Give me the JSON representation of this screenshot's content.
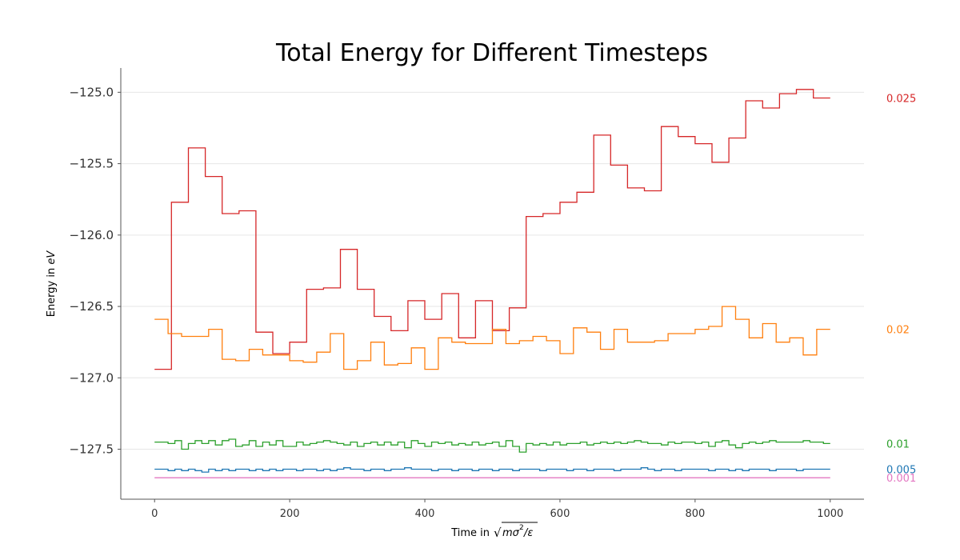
{
  "chart_data": {
    "type": "line",
    "title": "Total Energy for Different Timesteps",
    "xlabel_prefix": "Time in",
    "ylabel_prefix": "Energy in",
    "ylabel_unit": "eV",
    "xlim": [
      -50,
      1050
    ],
    "ylim": [
      -127.85,
      -124.83
    ],
    "xticks": [
      0,
      200,
      400,
      600,
      800,
      1000
    ],
    "xtick_labels": [
      "0",
      "200",
      "400",
      "600",
      "800",
      "1000"
    ],
    "yticks": [
      -125.0,
      -125.5,
      -126.0,
      -126.5,
      -127.0,
      -127.5
    ],
    "ytick_labels": [
      "−125.0",
      "−125.5",
      "−126.0",
      "−126.5",
      "−127.0",
      "−127.5"
    ],
    "grid": "horizontal",
    "legend": "series labels at right edge",
    "series": [
      {
        "name": "0.025",
        "color": "#d62728",
        "step": true,
        "x": [
          0,
          25,
          50,
          75,
          100,
          125,
          150,
          175,
          200,
          225,
          250,
          275,
          300,
          325,
          350,
          375,
          400,
          425,
          450,
          475,
          500,
          525,
          550,
          575,
          600,
          625,
          650,
          675,
          700,
          725,
          750,
          775,
          800,
          825,
          850,
          875,
          900,
          925,
          950,
          975,
          1000
        ],
        "values": [
          -126.94,
          -125.77,
          -125.39,
          -125.59,
          -125.85,
          -125.83,
          -126.68,
          -126.83,
          -126.75,
          -126.38,
          -126.37,
          -126.1,
          -126.38,
          -126.57,
          -126.67,
          -126.46,
          -126.59,
          -126.41,
          -126.72,
          -126.46,
          -126.67,
          -126.51,
          -125.87,
          -125.85,
          -125.77,
          -125.7,
          -125.3,
          -125.51,
          -125.67,
          -125.69,
          -125.24,
          -125.31,
          -125.36,
          -125.49,
          -125.32,
          -125.06,
          -125.11,
          -125.01,
          -124.98,
          -125.04,
          -125.04
        ]
      },
      {
        "name": "0.02",
        "color": "#ff7f0e",
        "step": true,
        "x": [
          0,
          20,
          40,
          60,
          80,
          100,
          120,
          140,
          160,
          180,
          200,
          220,
          240,
          260,
          280,
          300,
          320,
          340,
          360,
          380,
          400,
          420,
          440,
          460,
          480,
          500,
          520,
          540,
          560,
          580,
          600,
          620,
          640,
          660,
          680,
          700,
          720,
          740,
          760,
          780,
          800,
          820,
          840,
          860,
          880,
          900,
          920,
          940,
          960,
          980,
          1000
        ],
        "values": [
          -126.59,
          -126.69,
          -126.71,
          -126.71,
          -126.66,
          -126.87,
          -126.88,
          -126.8,
          -126.84,
          -126.84,
          -126.88,
          -126.89,
          -126.82,
          -126.69,
          -126.94,
          -126.88,
          -126.75,
          -126.91,
          -126.9,
          -126.79,
          -126.94,
          -126.72,
          -126.75,
          -126.76,
          -126.76,
          -126.66,
          -126.76,
          -126.74,
          -126.71,
          -126.74,
          -126.83,
          -126.65,
          -126.68,
          -126.8,
          -126.66,
          -126.75,
          -126.75,
          -126.74,
          -126.69,
          -126.69,
          -126.66,
          -126.64,
          -126.5,
          -126.59,
          -126.72,
          -126.62,
          -126.75,
          -126.72,
          -126.84,
          -126.66,
          -126.66
        ]
      },
      {
        "name": "0.01",
        "color": "#2ca02c",
        "step": true,
        "x": [
          0,
          10,
          20,
          30,
          40,
          50,
          60,
          70,
          80,
          90,
          100,
          110,
          120,
          130,
          140,
          150,
          160,
          170,
          180,
          190,
          200,
          210,
          220,
          230,
          240,
          250,
          260,
          270,
          280,
          290,
          300,
          310,
          320,
          330,
          340,
          350,
          360,
          370,
          380,
          390,
          400,
          410,
          420,
          430,
          440,
          450,
          460,
          470,
          480,
          490,
          500,
          510,
          520,
          530,
          540,
          550,
          560,
          570,
          580,
          590,
          600,
          610,
          620,
          630,
          640,
          650,
          660,
          670,
          680,
          690,
          700,
          710,
          720,
          730,
          740,
          750,
          760,
          770,
          780,
          790,
          800,
          810,
          820,
          830,
          840,
          850,
          860,
          870,
          880,
          890,
          900,
          910,
          920,
          930,
          940,
          950,
          960,
          970,
          980,
          990,
          1000
        ],
        "values": [
          -127.45,
          -127.45,
          -127.46,
          -127.44,
          -127.5,
          -127.46,
          -127.44,
          -127.46,
          -127.44,
          -127.47,
          -127.44,
          -127.43,
          -127.48,
          -127.47,
          -127.44,
          -127.48,
          -127.45,
          -127.47,
          -127.44,
          -127.48,
          -127.48,
          -127.45,
          -127.47,
          -127.46,
          -127.45,
          -127.44,
          -127.45,
          -127.46,
          -127.47,
          -127.45,
          -127.48,
          -127.46,
          -127.45,
          -127.47,
          -127.45,
          -127.47,
          -127.45,
          -127.49,
          -127.44,
          -127.46,
          -127.48,
          -127.45,
          -127.46,
          -127.45,
          -127.47,
          -127.46,
          -127.47,
          -127.45,
          -127.47,
          -127.46,
          -127.45,
          -127.48,
          -127.44,
          -127.48,
          -127.52,
          -127.46,
          -127.47,
          -127.46,
          -127.47,
          -127.45,
          -127.47,
          -127.46,
          -127.46,
          -127.45,
          -127.47,
          -127.46,
          -127.45,
          -127.46,
          -127.45,
          -127.46,
          -127.45,
          -127.44,
          -127.45,
          -127.46,
          -127.46,
          -127.47,
          -127.45,
          -127.46,
          -127.45,
          -127.45,
          -127.46,
          -127.45,
          -127.48,
          -127.45,
          -127.44,
          -127.47,
          -127.49,
          -127.46,
          -127.45,
          -127.46,
          -127.45,
          -127.44,
          -127.45,
          -127.45,
          -127.45,
          -127.45,
          -127.44,
          -127.45,
          -127.45,
          -127.46,
          -127.46
        ]
      },
      {
        "name": "0.005",
        "color": "#1f77b4",
        "step": true,
        "x": [
          0,
          10,
          20,
          30,
          40,
          50,
          60,
          70,
          80,
          90,
          100,
          110,
          120,
          130,
          140,
          150,
          160,
          170,
          180,
          190,
          200,
          210,
          220,
          230,
          240,
          250,
          260,
          270,
          280,
          290,
          300,
          310,
          320,
          330,
          340,
          350,
          360,
          370,
          380,
          390,
          400,
          410,
          420,
          430,
          440,
          450,
          460,
          470,
          480,
          490,
          500,
          510,
          520,
          530,
          540,
          550,
          560,
          570,
          580,
          590,
          600,
          610,
          620,
          630,
          640,
          650,
          660,
          670,
          680,
          690,
          700,
          710,
          720,
          730,
          740,
          750,
          760,
          770,
          780,
          790,
          800,
          810,
          820,
          830,
          840,
          850,
          860,
          870,
          880,
          890,
          900,
          910,
          920,
          930,
          940,
          950,
          960,
          970,
          980,
          990,
          1000
        ],
        "values": [
          -127.64,
          -127.64,
          -127.65,
          -127.64,
          -127.65,
          -127.64,
          -127.65,
          -127.66,
          -127.64,
          -127.65,
          -127.64,
          -127.65,
          -127.64,
          -127.64,
          -127.65,
          -127.64,
          -127.65,
          -127.64,
          -127.65,
          -127.64,
          -127.64,
          -127.65,
          -127.64,
          -127.64,
          -127.65,
          -127.64,
          -127.65,
          -127.64,
          -127.63,
          -127.64,
          -127.64,
          -127.65,
          -127.64,
          -127.64,
          -127.65,
          -127.64,
          -127.64,
          -127.63,
          -127.64,
          -127.64,
          -127.64,
          -127.65,
          -127.64,
          -127.64,
          -127.65,
          -127.64,
          -127.64,
          -127.65,
          -127.64,
          -127.64,
          -127.65,
          -127.64,
          -127.64,
          -127.65,
          -127.64,
          -127.64,
          -127.64,
          -127.65,
          -127.64,
          -127.64,
          -127.64,
          -127.65,
          -127.64,
          -127.64,
          -127.65,
          -127.64,
          -127.64,
          -127.64,
          -127.65,
          -127.64,
          -127.64,
          -127.64,
          -127.63,
          -127.64,
          -127.65,
          -127.64,
          -127.64,
          -127.65,
          -127.64,
          -127.64,
          -127.64,
          -127.64,
          -127.65,
          -127.64,
          -127.64,
          -127.65,
          -127.64,
          -127.65,
          -127.64,
          -127.64,
          -127.64,
          -127.65,
          -127.64,
          -127.64,
          -127.64,
          -127.65,
          -127.64,
          -127.64,
          -127.64,
          -127.64,
          -127.64
        ]
      },
      {
        "name": "0.001",
        "color": "#e377c2",
        "step": false,
        "x": [
          0,
          1000
        ],
        "values": [
          -127.7,
          -127.7
        ]
      }
    ]
  }
}
